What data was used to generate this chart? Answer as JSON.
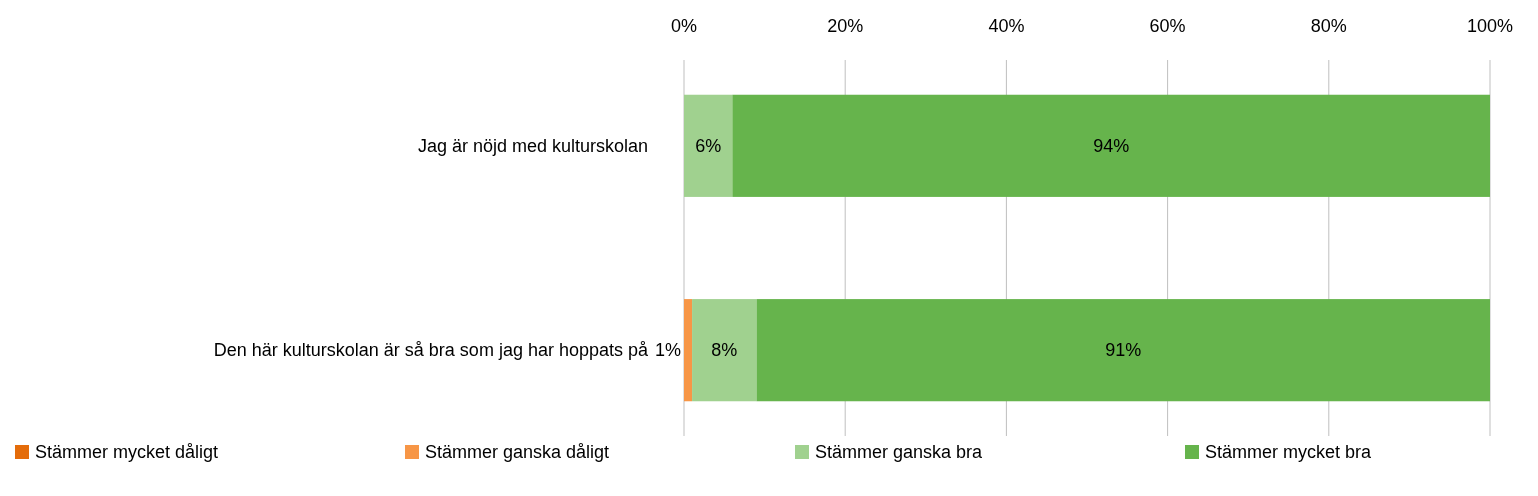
{
  "chart_data": {
    "type": "bar",
    "orientation": "horizontal",
    "stacked": true,
    "categories": [
      "Jag är nöjd med kulturskolan",
      "Den här kulturskolan är så bra som jag har hoppats på"
    ],
    "series": [
      {
        "name": "Stämmer mycket dåligt",
        "color": "#e46c0a",
        "values": [
          0,
          0
        ],
        "value_labels": [
          null,
          null
        ]
      },
      {
        "name": "Stämmer ganska dåligt",
        "color": "#f79646",
        "values": [
          0,
          1
        ],
        "value_labels": [
          null,
          "1%"
        ]
      },
      {
        "name": "Stämmer ganska bra",
        "color": "#a0d18f",
        "values": [
          6,
          8
        ],
        "value_labels": [
          "6%",
          "8%"
        ]
      },
      {
        "name": "Stämmer mycket bra",
        "color": "#66b44c",
        "values": [
          94,
          91
        ],
        "value_labels": [
          "94%",
          "91%"
        ]
      }
    ],
    "xlim": [
      0,
      100
    ],
    "xticks": [
      {
        "value": 0,
        "label": "0%"
      },
      {
        "value": 20,
        "label": "20%"
      },
      {
        "value": 40,
        "label": "40%"
      },
      {
        "value": 60,
        "label": "60%"
      },
      {
        "value": 80,
        "label": "80%"
      },
      {
        "value": 100,
        "label": "100%"
      }
    ],
    "grid": "x",
    "legend": "bottom"
  }
}
